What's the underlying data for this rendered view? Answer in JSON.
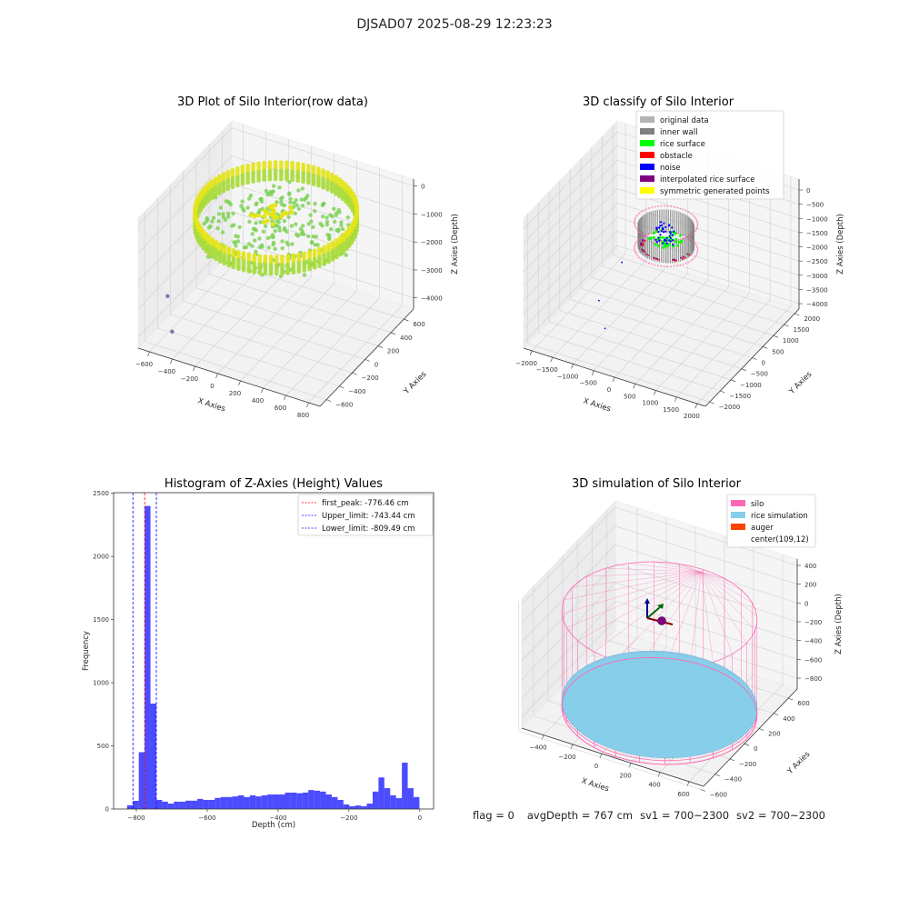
{
  "suptitle": "DJSAD07 2025-08-29 12:23:23",
  "footer": {
    "flag": "flag = 0",
    "avg_depth": "avgDepth = 767 cm",
    "sv1": "sv1 = 700~2300",
    "sv2": "sv2 = 700~2300"
  },
  "chart_data": [
    {
      "type": "scatter3d",
      "title": "3D Plot of Silo Interior(row data)",
      "xlabel": "X Axies",
      "ylabel": "Y Axies",
      "zlabel": "Z Axies (Depth)",
      "xlim": [
        -700,
        900
      ],
      "ylim": [
        -700,
        750
      ],
      "zlim": [
        -4400,
        250
      ],
      "xticks": [
        -600,
        -400,
        -200,
        0,
        200,
        400,
        600,
        800
      ],
      "xticklabels": [
        "−600",
        "−400",
        "−200",
        "0",
        "200",
        "400",
        "600",
        "800"
      ],
      "yticks": [
        -600,
        -400,
        -200,
        0,
        200,
        400,
        600
      ],
      "yticklabels": [
        "−600",
        "−400",
        "−200",
        "0",
        "200",
        "400",
        "600"
      ],
      "zticks": [
        0,
        -1000,
        -2000,
        -3000,
        -4000
      ],
      "zticklabels": [
        "0",
        "−1000",
        "−2000",
        "−3000",
        "−4000"
      ],
      "silo_center": [
        109,
        12
      ],
      "silo_radius": 620,
      "ring_z": [
        -100,
        -700
      ],
      "surface_z": -850,
      "colormap_colors": [
        "#e4e419",
        "#7ad151",
        "#8a6fa8"
      ],
      "outliers": [
        [
          -640,
          -350,
          -3300
        ],
        [
          -560,
          -420,
          -4300
        ]
      ]
    },
    {
      "type": "scatter3d",
      "title": "3D classify of Silo Interior",
      "xlabel": "X Axies",
      "ylabel": "Y Axies",
      "zlabel": "Z Axies (Depth)",
      "xlim": [
        -2200,
        2200
      ],
      "ylim": [
        -2200,
        2200
      ],
      "zlim": [
        -4190,
        384
      ],
      "xticks": [
        -2000,
        -1500,
        -1000,
        -500,
        0,
        500,
        1000,
        1500,
        2000
      ],
      "xticklabels": [
        "−2000",
        "−1500",
        "−1000",
        "−500",
        "0",
        "500",
        "1000",
        "1500",
        "2000"
      ],
      "yticks": [
        -2000,
        -1500,
        -1000,
        -500,
        0,
        500,
        1000,
        1500,
        2000
      ],
      "yticklabels": [
        "−2000",
        "−1500",
        "−1000",
        "−500",
        "0",
        "500",
        "1000",
        "1500",
        "2000"
      ],
      "zticks": [
        0,
        -500,
        -1000,
        -1500,
        -2000,
        -2500,
        -3000,
        -3500,
        -4000
      ],
      "zticklabels": [
        "0",
        "−500",
        "−1000",
        "−1500",
        "−2000",
        "−2500",
        "−3000",
        "−3500",
        "−4000"
      ],
      "silo_center": [
        109,
        12
      ],
      "silo_radius": 600,
      "wall_z": [
        -500,
        -1300
      ],
      "legend": [
        {
          "label": "original data",
          "color": "#b3b3b3"
        },
        {
          "label": "inner wall",
          "color": "#808080"
        },
        {
          "label": "rice surface",
          "color": "#00ff00"
        },
        {
          "label": "obstacle",
          "color": "#ff0000"
        },
        {
          "label": "noise",
          "color": "#0000ff"
        },
        {
          "label": "interpolated rice surface",
          "color": "#800080"
        },
        {
          "label": "symmetric generated points",
          "color": "#ffff00"
        }
      ]
    },
    {
      "type": "bar",
      "title": "Histogram of Z-Axies (Height) Values",
      "xlabel": "Depth (cm)",
      "ylabel": "Frequency",
      "xlim": [
        -864,
        39
      ],
      "ylim": [
        0,
        2505
      ],
      "xticks": [
        -800,
        -600,
        -400,
        -200,
        0
      ],
      "xticklabels": [
        "−800",
        "−600",
        "−400",
        "−200",
        "0"
      ],
      "yticks": [
        0,
        500,
        1000,
        1500,
        2000,
        2500
      ],
      "yticklabels": [
        "0",
        "500",
        "1000",
        "1500",
        "2000",
        "2500"
      ],
      "bin_start": -826,
      "bin_width": 16.5,
      "bar_color": "#0000ff",
      "values": [
        30,
        65,
        450,
        2400,
        835,
        72,
        58,
        43,
        58,
        58,
        66,
        66,
        80,
        72,
        72,
        88,
        95,
        95,
        100,
        108,
        95,
        108,
        100,
        108,
        115,
        115,
        115,
        130,
        130,
        125,
        130,
        150,
        145,
        138,
        115,
        95,
        72,
        36,
        22,
        28,
        22,
        43,
        138,
        250,
        165,
        108,
        86,
        367,
        165,
        95
      ],
      "vlines": [
        {
          "label": "first_peak: -776.46 cm",
          "x": -776.46,
          "color": "#ff0000"
        },
        {
          "label": "Upper_limit: -743.44 cm",
          "x": -743.44,
          "color": "#0000ff"
        },
        {
          "label": "Lower_limit: -809.49 cm",
          "x": -809.49,
          "color": "#0000ff"
        }
      ],
      "legend_position": "top-right"
    },
    {
      "type": "surface3d",
      "title": "3D simulation of Silo Interior",
      "xlabel": "X Axies",
      "ylabel": "Y Axies",
      "zlabel": "Z Axies (Depth)",
      "xlim": [
        -550,
        700
      ],
      "ylim": [
        -560,
        720
      ],
      "zlim": [
        -916,
        468
      ],
      "xticks": [
        -400,
        -200,
        0,
        200,
        400,
        600
      ],
      "xticklabels": [
        "−400",
        "−200",
        "0",
        "200",
        "400",
        "600"
      ],
      "yticks": [
        -600,
        -400,
        -200,
        0,
        200,
        400,
        600
      ],
      "yticklabels": [
        "−600",
        "−400",
        "−200",
        "0",
        "200",
        "400",
        "600"
      ],
      "zticks": [
        400,
        200,
        0,
        -200,
        -400,
        -600,
        -800
      ],
      "zticklabels": [
        "400",
        "200",
        "0",
        "−200",
        "−400",
        "−600",
        "−800"
      ],
      "silo_center": [
        109,
        12
      ],
      "silo_radius": 600,
      "silo_z": [
        -870,
        150
      ],
      "rice_z": -800,
      "legend": [
        {
          "label": "silo",
          "color": "#ff69b4"
        },
        {
          "label": "rice simulation",
          "color": "#87ceeb"
        },
        {
          "label": "auger",
          "color": "#ff4500"
        },
        {
          "label": "center(109,12)",
          "color": "none"
        }
      ]
    }
  ]
}
